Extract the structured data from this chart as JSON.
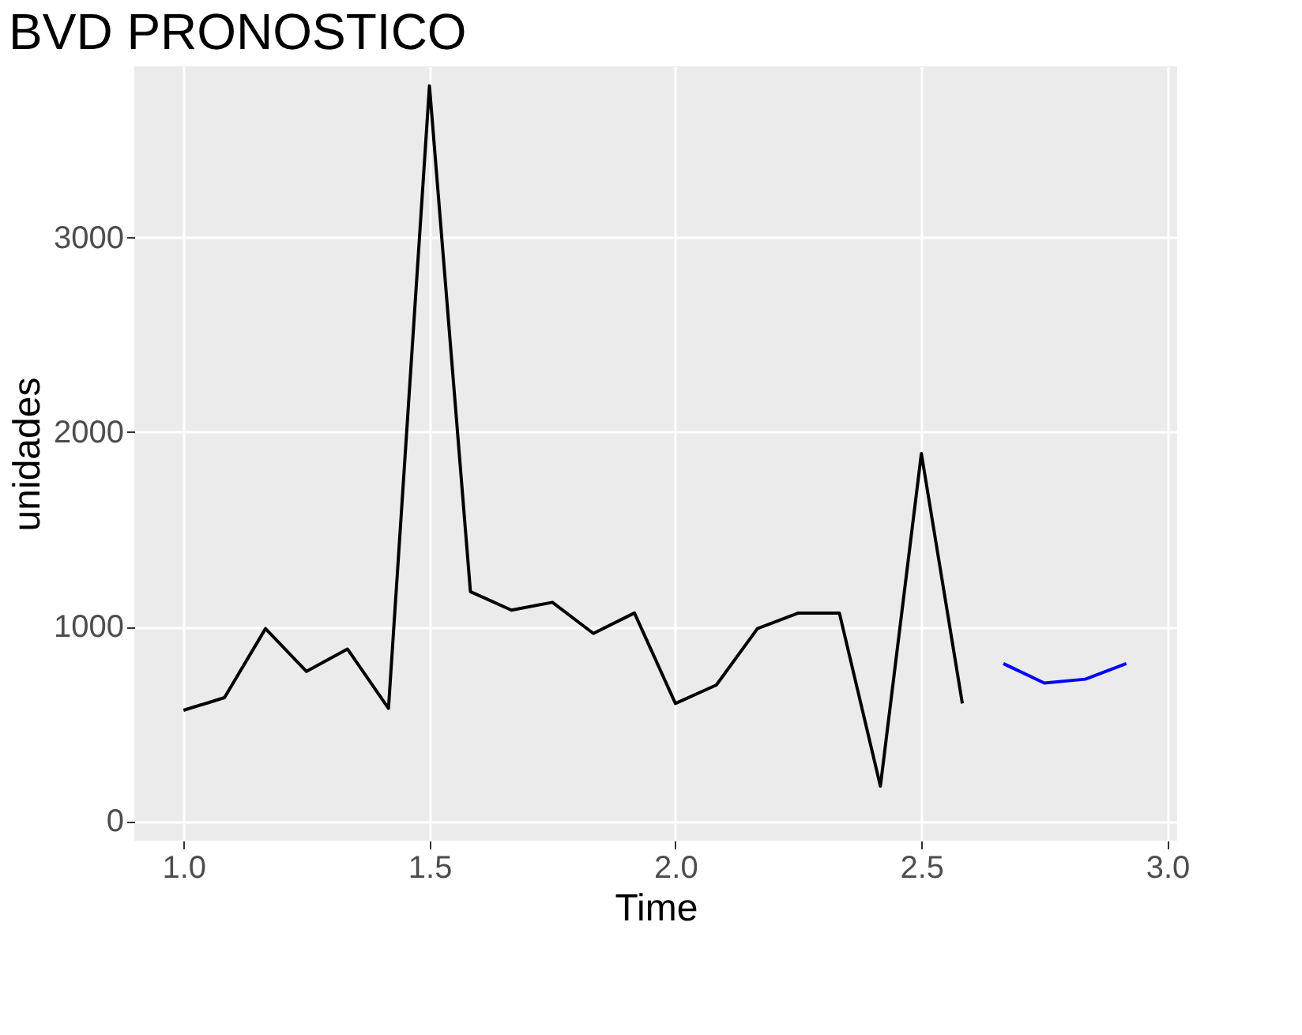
{
  "chart_data": {
    "type": "line",
    "title": "BVD PRONOSTICO",
    "xlabel": "Time",
    "ylabel": "unidades",
    "series": [
      {
        "color": "#000000",
        "x": [
          1.0,
          1.0833,
          1.1667,
          1.25,
          1.3333,
          1.4167,
          1.5,
          1.5833,
          1.6667,
          1.75,
          1.8333,
          1.9167,
          2.0,
          2.0833,
          2.1667,
          2.25,
          2.3333,
          2.4167,
          2.5,
          2.5833
        ],
        "values": [
          570,
          635,
          990,
          770,
          885,
          580,
          3780,
          1180,
          1085,
          1125,
          965,
          1070,
          605,
          700,
          990,
          1070,
          1070,
          180,
          1890,
          605
        ]
      },
      {
        "color": "#0000ff",
        "x": [
          2.6667,
          2.75,
          2.8333,
          2.9167
        ],
        "values": [
          810,
          710,
          730,
          810
        ]
      }
    ],
    "xlim": [
      0.9,
      3.02
    ],
    "xticks": [
      {
        "value": 1.0,
        "label": "1.0"
      },
      {
        "value": 1.5,
        "label": "1.5"
      },
      {
        "value": 2.0,
        "label": "2.0"
      },
      {
        "value": 2.5,
        "label": "2.5"
      },
      {
        "value": 3.0,
        "label": "3.0"
      }
    ],
    "ylim": [
      -100,
      3880
    ],
    "yticks": [
      0,
      1000,
      2000,
      3000
    ],
    "grid": true,
    "legend": false
  }
}
